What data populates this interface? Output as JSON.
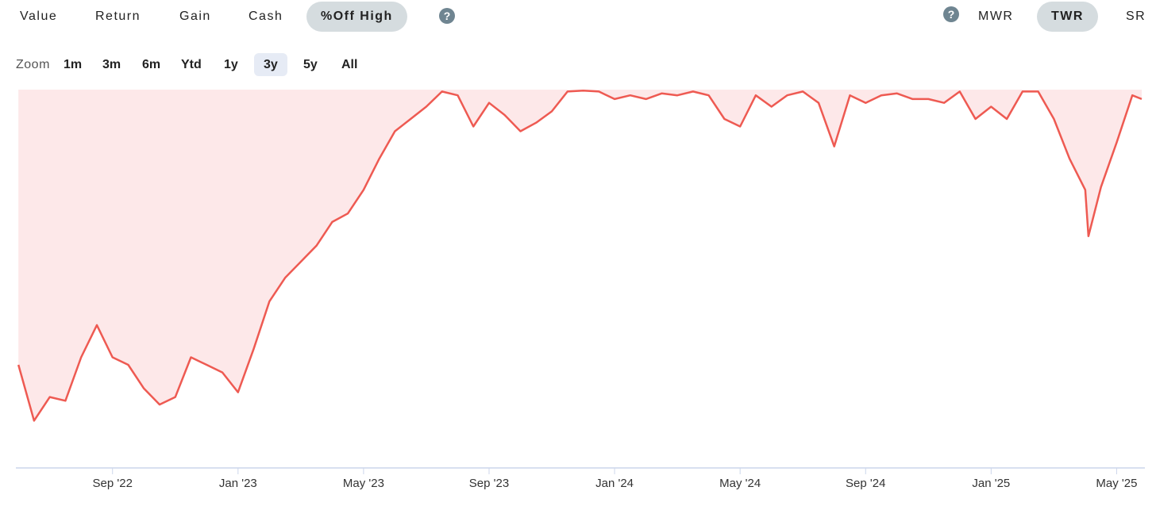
{
  "tabs": {
    "items": [
      "Value",
      "Return",
      "Gain",
      "Cash",
      "%Off High"
    ],
    "active": 4
  },
  "modes": {
    "items": [
      "MWR",
      "TWR",
      "SR"
    ],
    "active": 1
  },
  "help": "?",
  "zoom": {
    "label": "Zoom",
    "items": [
      "1m",
      "3m",
      "6m",
      "Ytd",
      "1y",
      "3y",
      "5y",
      "All"
    ],
    "active": 5
  },
  "chart_data": {
    "type": "area",
    "color": "#ee5a52",
    "fill": "#fde8e9",
    "x": [
      0,
      0.5,
      1,
      1.5,
      2,
      2.5,
      3,
      3.5,
      4,
      4.5,
      5,
      5.5,
      6,
      6.5,
      7,
      7.5,
      8,
      8.5,
      9,
      9.5,
      10,
      10.5,
      11,
      11.5,
      12,
      12.5,
      13,
      13.5,
      14,
      14.5,
      15,
      15.5,
      16,
      16.5,
      17,
      17.5,
      18,
      18.5,
      19,
      19.5,
      20,
      20.5,
      21,
      21.5,
      22,
      22.5,
      23,
      23.5,
      24,
      24.5,
      25,
      25.5,
      26,
      26.5,
      27,
      27.5,
      28,
      28.5,
      29,
      29.5,
      30,
      30.5,
      31,
      31.5,
      32,
      32.5,
      33,
      33.5,
      34,
      34.1,
      34.5,
      35,
      35.5,
      35.8
    ],
    "values": [
      -29.1,
      -35,
      -32.5,
      -32.9,
      -28.3,
      -24.9,
      -28.3,
      -29.1,
      -31.6,
      -33.3,
      -32.5,
      -28.3,
      -29.1,
      -29.9,
      -32,
      -27.4,
      -22.4,
      -19.9,
      -18.2,
      -16.5,
      -14,
      -13.1,
      -10.6,
      -7.3,
      -4.4,
      -3.1,
      -1.8,
      -0.2,
      -0.6,
      -3.9,
      -1.4,
      -2.7,
      -4.4,
      -3.5,
      -2.3,
      -0.2,
      -0.1,
      -0.2,
      -1,
      -0.6,
      -1,
      -0.4,
      -0.6,
      -0.2,
      -0.6,
      -3.1,
      -3.9,
      -0.6,
      -1.8,
      -0.6,
      -0.2,
      -1.4,
      -6,
      -0.6,
      -1.4,
      -0.6,
      -0.4,
      -1,
      -1,
      -1.4,
      -0.2,
      -3.1,
      -1.8,
      -3.1,
      -0.2,
      -0.2,
      -3.1,
      -7.3,
      -10.6,
      -15.5,
      -10.3,
      -5.6,
      -0.6,
      -1
    ],
    "xlim": [
      -0.08,
      35.9
    ],
    "ylim": [
      -40,
      0
    ],
    "xticks": [
      {
        "value": 3,
        "label": "Sep '22"
      },
      {
        "value": 7,
        "label": "Jan '23"
      },
      {
        "value": 11,
        "label": "May '23"
      },
      {
        "value": 15,
        "label": "Sep '23"
      },
      {
        "value": 19,
        "label": "Jan '24"
      },
      {
        "value": 23,
        "label": "May '24"
      },
      {
        "value": 27,
        "label": "Sep '24"
      },
      {
        "value": 31,
        "label": "Jan '25"
      },
      {
        "value": 35,
        "label": "May '25"
      }
    ]
  }
}
